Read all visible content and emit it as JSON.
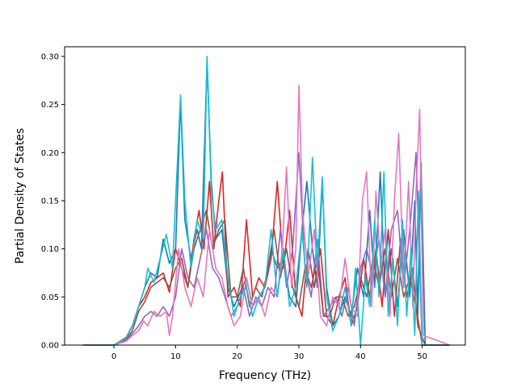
{
  "chart_data": {
    "type": "line",
    "title": "",
    "xlabel": "Frequency (THz)",
    "ylabel": "Partial Density of States",
    "xlim": [
      -8,
      57
    ],
    "ylim": [
      0,
      0.31
    ],
    "xticks": [
      0,
      10,
      20,
      30,
      40,
      50
    ],
    "yticks": [
      0.0,
      0.05,
      0.1,
      0.15,
      0.2,
      0.25,
      0.3
    ],
    "ytick_labels": [
      "0.00",
      "0.05",
      "0.10",
      "0.15",
      "0.20",
      "0.25",
      "0.30"
    ],
    "grid": false,
    "legend": "none",
    "series": [
      {
        "color": "#1f77b4",
        "x": [
          -5,
          0,
          2,
          3,
          4,
          5,
          6,
          7,
          8,
          9,
          10,
          10.8,
          11.5,
          12.5,
          13.5,
          14.2,
          15.1,
          15.8,
          16.5,
          17.5,
          18.5,
          19.5,
          20.5,
          21.5,
          22.5,
          23.5,
          24.5,
          25.5,
          26.5,
          27.5,
          28.5,
          29.5,
          30.5,
          31.3,
          32.2,
          33.0,
          33.8,
          34.5,
          35.5,
          36.5,
          37.5,
          38.5,
          39.5,
          40.5,
          41.5,
          42.3,
          43.2,
          44.0,
          45.0,
          46.0,
          47.0,
          48.0,
          48.8,
          49.3,
          49.8,
          50.5,
          54.5
        ],
        "y": [
          0,
          0,
          0.008,
          0.02,
          0.04,
          0.06,
          0.075,
          0.07,
          0.11,
          0.085,
          0.1,
          0.255,
          0.13,
          0.09,
          0.12,
          0.1,
          0.295,
          0.17,
          0.11,
          0.12,
          0.06,
          0.04,
          0.055,
          0.07,
          0.04,
          0.05,
          0.06,
          0.1,
          0.08,
          0.09,
          0.05,
          0.04,
          0.12,
          0.17,
          0.1,
          0.06,
          0.17,
          0.06,
          0.02,
          0.03,
          0.05,
          0.03,
          0.08,
          0.05,
          0.14,
          0.06,
          0.18,
          0.05,
          0.1,
          0.04,
          0.12,
          0.05,
          0.15,
          0.03,
          0.19,
          0,
          0
        ]
      },
      {
        "color": "#d62728",
        "x": [
          -5,
          0,
          2,
          3,
          4,
          5,
          6,
          7,
          8,
          9,
          10,
          11,
          12,
          13,
          13.8,
          14.6,
          15.5,
          16.2,
          17,
          17.6,
          18.5,
          19.5,
          20.5,
          21.5,
          22.5,
          23.5,
          24.5,
          25.5,
          26.5,
          27.5,
          28.5,
          29.5,
          30.5,
          31.5,
          32.5,
          33.5,
          34.5,
          35.5,
          36.5,
          37.5,
          38.5,
          39.5,
          40.5,
          41.5,
          42.5,
          43.5,
          44.5,
          45.5,
          46.5,
          47.5,
          48.5,
          49.3,
          50.5,
          54.5
        ],
        "y": [
          0,
          0,
          0.008,
          0.02,
          0.04,
          0.05,
          0.065,
          0.07,
          0.075,
          0.055,
          0.1,
          0.08,
          0.06,
          0.11,
          0.14,
          0.1,
          0.17,
          0.1,
          0.15,
          0.18,
          0.05,
          0.06,
          0.04,
          0.13,
          0.05,
          0.07,
          0.06,
          0.09,
          0.17,
          0.08,
          0.14,
          0.05,
          0.03,
          0.1,
          0.06,
          0.1,
          0.03,
          0.02,
          0.05,
          0.07,
          0.02,
          0.04,
          0.09,
          0.05,
          0.1,
          0.04,
          0.12,
          0.03,
          0.11,
          0.05,
          0.08,
          0.02,
          0,
          0
        ]
      },
      {
        "color": "#9467bd",
        "x": [
          -5,
          0,
          2,
          3,
          4,
          5,
          6,
          7,
          8,
          9,
          10,
          11,
          12,
          13,
          14,
          15,
          16,
          17,
          18,
          19,
          20,
          21,
          22,
          23,
          24,
          25,
          26,
          27,
          28,
          29,
          30,
          31,
          32,
          33,
          34,
          35,
          36,
          37,
          38,
          39,
          40,
          41,
          42,
          43,
          44,
          45,
          46,
          47,
          48,
          49,
          50,
          54.5
        ],
        "y": [
          0,
          0,
          0.005,
          0.012,
          0.02,
          0.03,
          0.035,
          0.03,
          0.04,
          0.03,
          0.05,
          0.1,
          0.07,
          0.06,
          0.09,
          0.12,
          0.08,
          0.07,
          0.05,
          0.03,
          0.04,
          0.06,
          0.03,
          0.05,
          0.04,
          0.06,
          0.05,
          0.12,
          0.06,
          0.1,
          0.2,
          0.08,
          0.05,
          0.11,
          0.03,
          0.04,
          0.05,
          0.03,
          0.06,
          0.02,
          0.08,
          0.1,
          0.07,
          0.11,
          0.05,
          0.12,
          0.14,
          0.06,
          0.12,
          0.2,
          0,
          0
        ]
      },
      {
        "color": "#8c564b",
        "x": [
          -5,
          0,
          2,
          3,
          4,
          5,
          6,
          7,
          8,
          9,
          10,
          11,
          12,
          13,
          14,
          15,
          16,
          17,
          18,
          19,
          20,
          21,
          22,
          23,
          24,
          25,
          26,
          27,
          28,
          29,
          30,
          31,
          32,
          33,
          34,
          35,
          36,
          37,
          38,
          39,
          40,
          41,
          42,
          43,
          44,
          45,
          46,
          47,
          48,
          49,
          50,
          54.5
        ],
        "y": [
          0,
          0,
          0.006,
          0.015,
          0.035,
          0.045,
          0.06,
          0.065,
          0.07,
          0.06,
          0.08,
          0.09,
          0.06,
          0.1,
          0.12,
          0.14,
          0.1,
          0.12,
          0.13,
          0.05,
          0.05,
          0.08,
          0.04,
          0.06,
          0.05,
          0.08,
          0.12,
          0.07,
          0.1,
          0.06,
          0.04,
          0.08,
          0.06,
          0.09,
          0.03,
          0.03,
          0.05,
          0.05,
          0.03,
          0.04,
          0.07,
          0.05,
          0.09,
          0.06,
          0.1,
          0.05,
          0.09,
          0.05,
          0.07,
          0.04,
          0,
          0
        ]
      },
      {
        "color": "#e377c2",
        "x": [
          -5,
          0,
          2,
          3,
          4,
          4.8,
          5.5,
          6.5,
          7.5,
          8.5,
          9.0,
          9.5,
          10.5,
          11.5,
          12.5,
          13.5,
          14.5,
          15.5,
          16.5,
          17.5,
          18.5,
          19.5,
          20.5,
          21.5,
          22.5,
          23.5,
          24.5,
          25.5,
          26.5,
          27.3,
          28.0,
          28.8,
          29.5,
          30.0,
          30.6,
          31.5,
          32.5,
          33.5,
          34.5,
          35.5,
          36.5,
          37.5,
          38.5,
          39.5,
          40.3,
          41.0,
          41.8,
          42.5,
          43.3,
          44.0,
          44.8,
          45.5,
          46.2,
          47.0,
          47.8,
          48.5,
          49.0,
          49.6,
          50.2,
          54.5
        ],
        "y": [
          0,
          0,
          0.004,
          0.01,
          0.015,
          0.025,
          0.02,
          0.035,
          0.03,
          0.035,
          0.01,
          0.03,
          0.1,
          0.06,
          0.04,
          0.07,
          0.05,
          0.12,
          0.08,
          0.07,
          0.04,
          0.02,
          0.03,
          0.07,
          0.04,
          0.05,
          0.03,
          0.06,
          0.05,
          0.1,
          0.185,
          0.06,
          0.1,
          0.27,
          0.14,
          0.07,
          0.12,
          0.03,
          0.02,
          0.05,
          0.04,
          0.09,
          0.04,
          0.03,
          0.15,
          0.18,
          0.04,
          0.16,
          0.08,
          0.12,
          0.03,
          0.15,
          0.22,
          0.06,
          0.17,
          0.04,
          0.16,
          0.245,
          0.01,
          0
        ]
      },
      {
        "color": "#17becf",
        "x": [
          -5,
          0,
          2,
          3,
          4,
          5,
          5.5,
          6.5,
          7.5,
          8.5,
          9.5,
          10.8,
          11.5,
          12.5,
          13.5,
          14.5,
          15.1,
          15.8,
          16.5,
          17.5,
          18.5,
          19.5,
          20.5,
          21.5,
          22.5,
          23.5,
          24.5,
          25.5,
          26.5,
          27.5,
          28.5,
          29.5,
          30.5,
          31.3,
          32.2,
          33.0,
          33.8,
          34.5,
          35.5,
          36.5,
          37.5,
          38.5,
          39.2,
          40.0,
          40.8,
          41.5,
          42.3,
          43.0,
          43.8,
          44.5,
          45.3,
          46.0,
          46.8,
          47.5,
          48.2,
          48.8,
          49.4,
          50.0,
          54.5
        ],
        "y": [
          0,
          0,
          0.007,
          0.02,
          0.04,
          0.06,
          0.08,
          0.065,
          0.09,
          0.115,
          0.08,
          0.26,
          0.15,
          0.08,
          0.13,
          0.11,
          0.3,
          0.16,
          0.12,
          0.13,
          0.07,
          0.03,
          0.05,
          0.06,
          0.03,
          0.05,
          0.06,
          0.12,
          0.05,
          0.1,
          0.04,
          0.06,
          0.12,
          0.06,
          0.195,
          0.08,
          0.175,
          0.05,
          0.015,
          0.03,
          0.06,
          0.02,
          0.08,
          0.0,
          0.07,
          0.04,
          0.13,
          0.05,
          0.18,
          0.03,
          0.09,
          0.02,
          0.13,
          0.03,
          0.1,
          0.01,
          0.16,
          0,
          0
        ]
      }
    ]
  }
}
